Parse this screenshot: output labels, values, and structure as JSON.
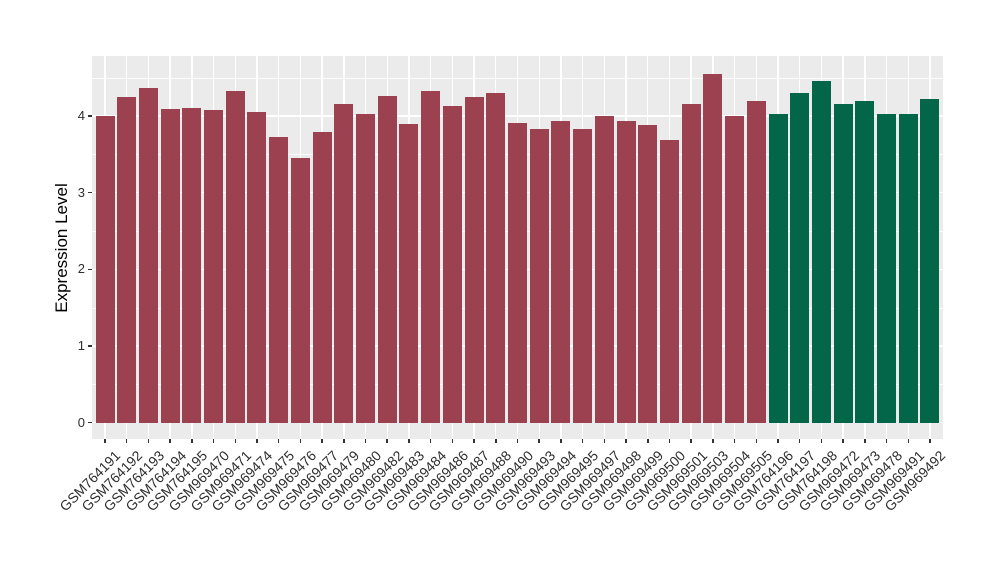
{
  "chart": {
    "panel_background": "#EBEBEB",
    "grid_color": "#FFFFFF",
    "tick_color": "#333333",
    "text_color": "#2E2E2E",
    "bar_color_main": "#9C4150",
    "bar_color_highlight": "#046648"
  },
  "y_axis": {
    "title": "Expression Level",
    "tick_labels": [
      "0",
      "1",
      "2",
      "3",
      "4"
    ],
    "tick_values": [
      0,
      1,
      2,
      3,
      4
    ],
    "minor_tick_values": [
      0.5,
      1.5,
      2.5,
      3.5,
      4.5
    ]
  },
  "chart_data": {
    "type": "bar",
    "title": "",
    "xlabel": "",
    "ylabel": "Expression Level",
    "ylim": [
      0,
      4.78
    ],
    "grid": true,
    "legend_position": "none",
    "categories": [
      "GSM764191",
      "GSM764192",
      "GSM764193",
      "GSM764194",
      "GSM764195",
      "GSM969470",
      "GSM969471",
      "GSM969474",
      "GSM969475",
      "GSM969476",
      "GSM969477",
      "GSM969479",
      "GSM969480",
      "GSM969482",
      "GSM969483",
      "GSM969484",
      "GSM969486",
      "GSM969487",
      "GSM969488",
      "GSM969490",
      "GSM969493",
      "GSM969494",
      "GSM969495",
      "GSM969497",
      "GSM969498",
      "GSM969499",
      "GSM969500",
      "GSM969501",
      "GSM969503",
      "GSM969504",
      "GSM969505",
      "GSM764196",
      "GSM764197",
      "GSM764198",
      "GSM969472",
      "GSM969473",
      "GSM969478",
      "GSM969491",
      "GSM969492"
    ],
    "values": [
      4.0,
      4.24,
      4.36,
      4.09,
      4.1,
      4.08,
      4.32,
      4.05,
      3.72,
      3.45,
      3.79,
      4.15,
      4.02,
      4.26,
      3.9,
      4.32,
      4.13,
      4.25,
      4.3,
      3.91,
      3.83,
      3.94,
      3.83,
      4.0,
      3.93,
      3.88,
      3.69,
      4.16,
      4.55,
      4.0,
      4.19,
      4.03,
      4.3,
      4.46,
      4.16,
      4.2,
      4.02,
      4.03,
      4.22
    ],
    "groups": [
      {
        "name": "group-1",
        "color": "#9C4150",
        "start_index": 0,
        "end_index": 30
      },
      {
        "name": "group-2",
        "color": "#046648",
        "start_index": 31,
        "end_index": 38
      }
    ]
  }
}
